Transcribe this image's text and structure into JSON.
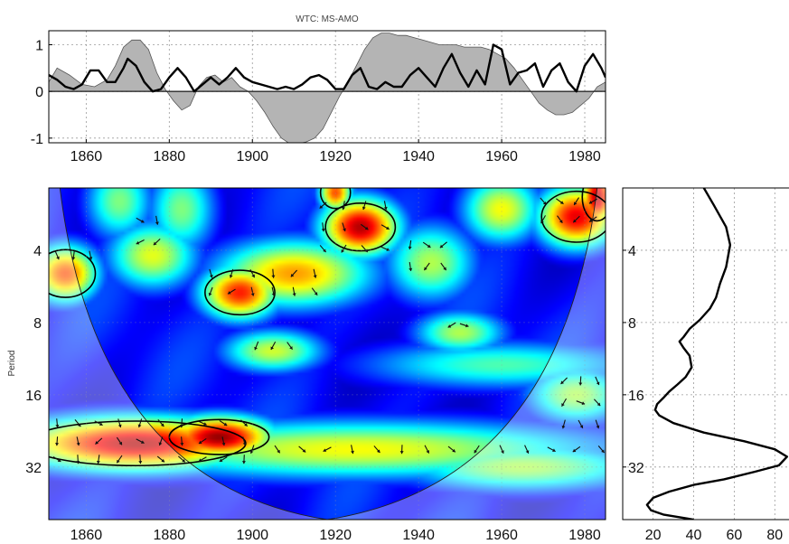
{
  "title": "WTC: MS-AMO",
  "ylabel": "Period",
  "chart_data": [
    {
      "type": "area",
      "panel": "time-series",
      "title": "WTC: MS-AMO",
      "xlim": [
        1851,
        1985
      ],
      "ylim": [
        -1.1,
        1.3
      ],
      "xticks": [
        1860,
        1880,
        1900,
        1920,
        1940,
        1960,
        1980
      ],
      "yticks": [
        -1,
        0,
        1
      ],
      "grid": true,
      "series": [
        {
          "style": "filled gray area",
          "x": [
            1851,
            1853,
            1856,
            1859,
            1862,
            1865,
            1867,
            1869,
            1871,
            1873,
            1875,
            1877,
            1879,
            1881,
            1883,
            1885,
            1887,
            1889,
            1891,
            1893,
            1895,
            1897,
            1899,
            1901,
            1903,
            1905,
            1907,
            1909,
            1911,
            1913,
            1915,
            1917,
            1919,
            1921,
            1923,
            1925,
            1927,
            1929,
            1931,
            1933,
            1935,
            1937,
            1939,
            1941,
            1943,
            1945,
            1947,
            1949,
            1951,
            1953,
            1955,
            1957,
            1959,
            1961,
            1963,
            1965,
            1967,
            1969,
            1971,
            1973,
            1975,
            1977,
            1979,
            1981,
            1983,
            1985
          ],
          "values": [
            0.2,
            0.5,
            0.35,
            0.15,
            0.1,
            0.25,
            0.55,
            0.95,
            1.1,
            1.1,
            0.9,
            0.4,
            0.05,
            -0.2,
            -0.4,
            -0.3,
            0.1,
            0.3,
            0.35,
            0.2,
            0.3,
            0.1,
            0.0,
            -0.2,
            -0.45,
            -0.75,
            -1.0,
            -1.12,
            -1.12,
            -1.08,
            -1.0,
            -0.8,
            -0.45,
            -0.1,
            0.2,
            0.55,
            0.9,
            1.15,
            1.25,
            1.25,
            1.2,
            1.2,
            1.15,
            1.1,
            1.05,
            1.0,
            1.0,
            1.0,
            0.95,
            0.95,
            0.95,
            0.9,
            0.8,
            0.7,
            0.5,
            0.25,
            0.0,
            -0.25,
            -0.4,
            -0.5,
            -0.5,
            -0.45,
            -0.3,
            -0.15,
            0.1,
            0.2
          ]
        },
        {
          "style": "thick black line",
          "x": [
            1851,
            1853,
            1855,
            1857,
            1859,
            1861,
            1863,
            1865,
            1867,
            1869,
            1870,
            1872,
            1874,
            1876,
            1878,
            1880,
            1882,
            1884,
            1886,
            1888,
            1890,
            1892,
            1894,
            1896,
            1898,
            1900,
            1902,
            1904,
            1906,
            1908,
            1910,
            1912,
            1914,
            1916,
            1918,
            1920,
            1922,
            1924,
            1926,
            1928,
            1930,
            1932,
            1934,
            1936,
            1938,
            1940,
            1942,
            1944,
            1946,
            1948,
            1950,
            1952,
            1954,
            1956,
            1958,
            1960,
            1962,
            1964,
            1966,
            1968,
            1970,
            1972,
            1974,
            1976,
            1978,
            1980,
            1982,
            1984,
            1985
          ],
          "values": [
            0.35,
            0.25,
            0.1,
            0.05,
            0.15,
            0.45,
            0.45,
            0.2,
            0.2,
            0.5,
            0.7,
            0.55,
            0.2,
            0.0,
            0.05,
            0.3,
            0.5,
            0.3,
            0.0,
            0.15,
            0.3,
            0.15,
            0.3,
            0.5,
            0.3,
            0.2,
            0.15,
            0.1,
            0.05,
            0.1,
            0.05,
            0.15,
            0.3,
            0.35,
            0.25,
            0.05,
            0.05,
            0.35,
            0.5,
            0.1,
            0.05,
            0.2,
            0.1,
            0.1,
            0.35,
            0.5,
            0.3,
            0.1,
            0.5,
            0.8,
            0.4,
            0.1,
            0.45,
            0.15,
            1.0,
            0.9,
            0.15,
            0.4,
            0.45,
            0.6,
            0.1,
            0.45,
            0.6,
            0.2,
            0.0,
            0.55,
            0.8,
            0.5,
            0.3
          ]
        }
      ]
    },
    {
      "type": "heatmap",
      "panel": "wavelet-coherence",
      "xlabel": "",
      "ylabel": "Period",
      "xlim": [
        1851,
        1985
      ],
      "ylim": [
        2.2,
        53
      ],
      "yscale": "log2",
      "xticks": [
        1860,
        1880,
        1900,
        1920,
        1940,
        1960,
        1980
      ],
      "yticks": [
        4,
        8,
        16,
        32
      ],
      "colormap": "jet",
      "grid": true,
      "coi_apex": [
        1918,
        4
      ],
      "blobs": [
        {
          "x": 1872,
          "period": 25.5,
          "level": 0.95,
          "sx": 22,
          "sp": 0.28
        },
        {
          "x": 1892,
          "period": 24,
          "level": 0.98,
          "sx": 10,
          "sp": 0.22
        },
        {
          "x": 1925,
          "period": 27,
          "level": 0.62,
          "sx": 45,
          "sp": 0.3
        },
        {
          "x": 1965,
          "period": 32,
          "level": 0.55,
          "sx": 22,
          "sp": 0.25
        },
        {
          "x": 1926,
          "period": 3.2,
          "level": 0.95,
          "sx": 7,
          "sp": 0.3
        },
        {
          "x": 1910,
          "period": 5.0,
          "level": 0.72,
          "sx": 14,
          "sp": 0.35
        },
        {
          "x": 1897,
          "period": 6.0,
          "level": 0.85,
          "sx": 7,
          "sp": 0.28
        },
        {
          "x": 1876,
          "period": 4.2,
          "level": 0.6,
          "sx": 8,
          "sp": 0.35
        },
        {
          "x": 1855,
          "period": 5.0,
          "level": 0.8,
          "sx": 6,
          "sp": 0.3
        },
        {
          "x": 1978,
          "period": 2.9,
          "level": 0.9,
          "sx": 7,
          "sp": 0.32
        },
        {
          "x": 1960,
          "period": 2.7,
          "level": 0.62,
          "sx": 7,
          "sp": 0.35
        },
        {
          "x": 1943,
          "period": 4.5,
          "level": 0.55,
          "sx": 8,
          "sp": 0.4
        },
        {
          "x": 1905,
          "period": 10.5,
          "level": 0.58,
          "sx": 9,
          "sp": 0.22
        },
        {
          "x": 1950,
          "period": 8.8,
          "level": 0.55,
          "sx": 8,
          "sp": 0.22
        },
        {
          "x": 1978,
          "period": 16,
          "level": 0.55,
          "sx": 9,
          "sp": 0.3
        },
        {
          "x": 1883,
          "period": 2.7,
          "level": 0.5,
          "sx": 6,
          "sp": 0.45
        },
        {
          "x": 1868,
          "period": 2.5,
          "level": 0.5,
          "sx": 6,
          "sp": 0.4
        },
        {
          "x": 1983,
          "period": 2.4,
          "level": 0.95,
          "sx": 3,
          "sp": 0.3
        },
        {
          "x": 1920,
          "period": 2.3,
          "level": 0.8,
          "sx": 3,
          "sp": 0.2
        },
        {
          "x": 1960,
          "period": 12,
          "level": 0.45,
          "sx": 25,
          "sp": 0.25
        }
      ],
      "arrow_regions": [
        {
          "x": [
            1853,
            1900
          ],
          "period": [
            21,
            32
          ],
          "dx": 5,
          "dper": 0.25
        },
        {
          "x": [
            1900,
            1985
          ],
          "period": [
            27,
            32
          ],
          "dx": 6,
          "dper": 0.25
        },
        {
          "x": [
            1917,
            1935
          ],
          "period": [
            2.6,
            4.8
          ],
          "dx": 5,
          "dper": 0.3
        },
        {
          "x": [
            1890,
            1915
          ],
          "period": [
            5,
            6.8
          ],
          "dx": 5,
          "dper": 0.25
        },
        {
          "x": [
            1970,
            1982
          ],
          "period": [
            2.5,
            3.4
          ],
          "dx": 4,
          "dper": 0.25
        },
        {
          "x": [
            1975,
            1984
          ],
          "period": [
            14,
            25
          ],
          "dx": 4,
          "dper": 0.3
        },
        {
          "x": [
            1901,
            1910
          ],
          "period": [
            10,
            11
          ],
          "dx": 4,
          "dper": 0.25
        },
        {
          "x": [
            1948,
            1952
          ],
          "period": [
            8.2,
            9.2
          ],
          "dx": 3,
          "dper": 0.3
        },
        {
          "x": [
            1853,
            1862
          ],
          "period": [
            4.2,
            5
          ],
          "dx": 4,
          "dper": 0.3
        },
        {
          "x": [
            1873,
            1878
          ],
          "period": [
            3,
            4.2
          ],
          "dx": 4,
          "dper": 0.3
        },
        {
          "x": [
            1938,
            1946
          ],
          "period": [
            3.8,
            5.2
          ],
          "dx": 4,
          "dper": 0.3
        }
      ]
    },
    {
      "type": "line",
      "panel": "global-spectrum",
      "xlim": [
        5,
        87
      ],
      "ylim": [
        2.2,
        53
      ],
      "yscale": "log2",
      "xticks": [
        20,
        40,
        60,
        80
      ],
      "yticks": [
        4,
        8,
        16,
        32
      ],
      "grid": true,
      "series": [
        {
          "style": "thick black line",
          "x": [
            45,
            50,
            56,
            58,
            56,
            53,
            51,
            48,
            43,
            38,
            35,
            33,
            35,
            38,
            39,
            36,
            32,
            28,
            25,
            22,
            21,
            23,
            30,
            45,
            65,
            80,
            86,
            82,
            70,
            55,
            40,
            28,
            20,
            17,
            19,
            25,
            40
          ],
          "values": [
            2.2,
            2.6,
            3.2,
            3.8,
            4.7,
            5.5,
            6.3,
            7.0,
            7.8,
            8.5,
            9.2,
            9.6,
            10.2,
            11.0,
            12.3,
            13.5,
            14.5,
            15.5,
            16.5,
            17.5,
            18.5,
            19.5,
            21.0,
            23.0,
            25.0,
            27.0,
            29.0,
            31.5,
            33.5,
            36.0,
            38.0,
            40.5,
            43.0,
            46.0,
            48.5,
            50.5,
            53.0
          ]
        }
      ]
    }
  ]
}
